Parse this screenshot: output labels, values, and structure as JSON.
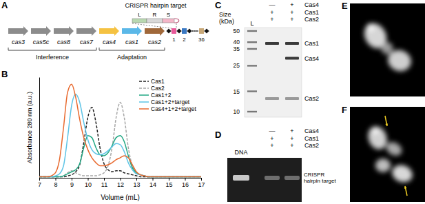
{
  "chart_data": {
    "type": "line",
    "x": [
      7,
      7.25,
      7.5,
      7.75,
      8,
      8.25,
      8.5,
      8.75,
      9,
      9.25,
      9.5,
      9.75,
      10,
      10.25,
      10.5,
      10.75,
      11,
      11.25,
      11.5,
      11.75,
      12,
      12.25,
      12.5,
      12.75,
      13,
      13.25,
      13.5,
      13.75,
      14,
      14.25,
      14.5,
      14.75,
      15,
      15.25,
      15.5,
      15.75,
      16,
      16.25,
      16.5,
      16.75,
      17
    ],
    "series": [
      {
        "name": "Cas1",
        "color": "#222222",
        "line_style": "dashed",
        "values": [
          0.01,
          0.01,
          0.01,
          0.01,
          0.01,
          0.01,
          0.01,
          0.02,
          0.03,
          0.06,
          0.13,
          0.35,
          0.6,
          0.7,
          0.55,
          0.3,
          0.14,
          0.08,
          0.06,
          0.07,
          0.07,
          0.05,
          0.04,
          0.03,
          0.02,
          0.01,
          0.01,
          0.01,
          0.01,
          0.01,
          0.01,
          0.01,
          0.01,
          0.01,
          0.01,
          0.01,
          0.01,
          0.01,
          0.01,
          0.01,
          0.01
        ]
      },
      {
        "name": "Cas2",
        "color": "#a6a6a6",
        "line_style": "dashed",
        "values": [
          0.01,
          0.01,
          0.01,
          0.01,
          0.01,
          0.01,
          0.02,
          0.05,
          0.07,
          0.05,
          0.03,
          0.02,
          0.02,
          0.02,
          0.02,
          0.03,
          0.05,
          0.12,
          0.3,
          0.6,
          0.75,
          0.6,
          0.3,
          0.12,
          0.05,
          0.03,
          0.02,
          0.01,
          0.01,
          0.01,
          0.01,
          0.01,
          0.01,
          0.01,
          0.01,
          0.01,
          0.01,
          0.01,
          0.01,
          0.01,
          0.01
        ]
      },
      {
        "name": "Cas1+2",
        "color": "#22a884",
        "line_style": "solid",
        "values": [
          0.01,
          0.01,
          0.01,
          0.01,
          0.01,
          0.01,
          0.02,
          0.04,
          0.06,
          0.08,
          0.14,
          0.3,
          0.42,
          0.4,
          0.3,
          0.23,
          0.22,
          0.25,
          0.32,
          0.4,
          0.42,
          0.36,
          0.22,
          0.1,
          0.05,
          0.03,
          0.02,
          0.01,
          0.01,
          0.01,
          0.01,
          0.01,
          0.01,
          0.01,
          0.01,
          0.01,
          0.01,
          0.01,
          0.01,
          0.01,
          0.01
        ]
      },
      {
        "name": "Cas1+2+target",
        "color": "#5ec4e6",
        "line_style": "solid",
        "values": [
          0.01,
          0.01,
          0.01,
          0.01,
          0.02,
          0.04,
          0.12,
          0.4,
          0.72,
          0.83,
          0.75,
          0.55,
          0.38,
          0.28,
          0.24,
          0.23,
          0.24,
          0.27,
          0.31,
          0.34,
          0.33,
          0.26,
          0.15,
          0.08,
          0.04,
          0.03,
          0.02,
          0.01,
          0.01,
          0.01,
          0.01,
          0.01,
          0.01,
          0.01,
          0.01,
          0.01,
          0.01,
          0.01,
          0.01,
          0.01,
          0.01
        ]
      },
      {
        "name": "Cas4+1+2+target",
        "color": "#e8692e",
        "line_style": "solid",
        "values": [
          0.01,
          0.01,
          0.01,
          0.02,
          0.05,
          0.18,
          0.5,
          0.85,
          0.93,
          0.8,
          0.58,
          0.4,
          0.28,
          0.2,
          0.15,
          0.12,
          0.12,
          0.13,
          0.15,
          0.18,
          0.2,
          0.22,
          0.2,
          0.13,
          0.06,
          0.03,
          0.02,
          0.01,
          0.01,
          0.01,
          0.01,
          0.01,
          0.01,
          0.01,
          0.01,
          0.01,
          0.01,
          0.01,
          0.01,
          0.01,
          0.01
        ]
      }
    ],
    "xlim": [
      7,
      17
    ],
    "xticks": [
      7,
      8,
      9,
      10,
      11,
      12,
      13,
      14,
      15,
      16,
      17
    ],
    "ylim": [
      0,
      1
    ],
    "yticks": [],
    "x_label": "Volume (mL)",
    "y_label": "Absorbance 280 nm (a.u.)",
    "tick_labels": "x",
    "legend": "top-right"
  },
  "panels": {
    "A": {
      "label": "A",
      "target_title": "CRISPR hairpin target",
      "target_parts": [
        "L",
        "R",
        "S"
      ],
      "genes": [
        {
          "name": "cas3",
          "color": "#8c8c8c"
        },
        {
          "name": "cas5c",
          "color": "#8c8c8c"
        },
        {
          "name": "cas8",
          "color": "#8c8c8c"
        },
        {
          "name": "cas7",
          "color": "#8c8c8c"
        },
        {
          "name": "cas4",
          "color": "#f5c242"
        },
        {
          "name": "cas1",
          "color": "#5bb8e8"
        },
        {
          "name": "cas2",
          "color": "#a0683a"
        }
      ],
      "groups": [
        {
          "label": "Interference",
          "genes": [
            "cas3",
            "cas5c",
            "cas8",
            "cas7"
          ]
        },
        {
          "label": "Adaptation",
          "genes": [
            "cas4",
            "cas1",
            "cas2"
          ]
        }
      ],
      "spacers": [
        1,
        2,
        36
      ]
    },
    "B": {
      "label": "B"
    },
    "C": {
      "label": "C",
      "rows": [
        {
          "name": "Cas4",
          "lanes": [
            "—",
            "+"
          ]
        },
        {
          "name": "Cas1",
          "lanes": [
            "+",
            "+"
          ]
        },
        {
          "name": "Cas2",
          "lanes": [
            "+",
            "+"
          ]
        }
      ],
      "ladder_lane": "L",
      "ladder_title": "Size (kDa)",
      "ladder": [
        50,
        40,
        35,
        25,
        15,
        10
      ],
      "bands": [
        {
          "name": "Cas1",
          "size": 39
        },
        {
          "name": "Cas4",
          "size": 29
        },
        {
          "name": "Cas2",
          "size": 13
        }
      ]
    },
    "D": {
      "label": "D",
      "rows": [
        {
          "name": "Cas4",
          "lanes": [
            "—",
            "+"
          ]
        },
        {
          "name": "Cas1",
          "lanes": [
            "+",
            "+"
          ]
        },
        {
          "name": "Cas2",
          "lanes": [
            "+",
            "+"
          ]
        }
      ],
      "dna_lane": "DNA",
      "band": "CRISPR hairpin target"
    },
    "E": {
      "label": "E"
    },
    "F": {
      "label": "F"
    }
  }
}
